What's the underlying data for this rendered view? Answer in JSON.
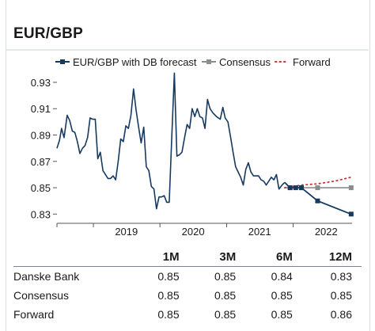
{
  "header": {
    "title": "EUR/GBP"
  },
  "chart_data": {
    "type": "line",
    "title": "EUR/GBP",
    "xlabel": "",
    "ylabel": "",
    "ylim": [
      0.823,
      0.942
    ],
    "yticks": [
      "0.93",
      "0.91",
      "0.89",
      "0.87",
      "0.85",
      "0.83"
    ],
    "ytick_values": [
      0.93,
      0.91,
      0.89,
      0.87,
      0.85,
      0.83
    ],
    "xticks": [
      "2019",
      "2020",
      "2021",
      "2022"
    ],
    "legend_position": "top",
    "grid": false,
    "series": [
      {
        "name": "EUR/GBP with DB forecast",
        "color": "#163a5f",
        "style": "solid-with-squares",
        "history": [
          [
            "2018-06-15",
            0.88
          ],
          [
            "2018-06-29",
            0.886
          ],
          [
            "2018-07-10",
            0.895
          ],
          [
            "2018-07-24",
            0.888
          ],
          [
            "2018-08-10",
            0.905
          ],
          [
            "2018-08-24",
            0.901
          ],
          [
            "2018-09-07",
            0.893
          ],
          [
            "2018-09-21",
            0.892
          ],
          [
            "2018-10-05",
            0.885
          ],
          [
            "2018-10-19",
            0.876
          ],
          [
            "2018-11-02",
            0.88
          ],
          [
            "2018-11-16",
            0.882
          ],
          [
            "2018-11-30",
            0.888
          ],
          [
            "2018-12-14",
            0.903
          ],
          [
            "2018-12-28",
            0.902
          ],
          [
            "2019-01-11",
            0.902
          ],
          [
            "2019-01-25",
            0.872
          ],
          [
            "2019-02-08",
            0.877
          ],
          [
            "2019-02-22",
            0.863
          ],
          [
            "2019-03-08",
            0.86
          ],
          [
            "2019-03-22",
            0.857
          ],
          [
            "2019-04-05",
            0.857
          ],
          [
            "2019-04-19",
            0.859
          ],
          [
            "2019-05-03",
            0.856
          ],
          [
            "2019-05-17",
            0.87
          ],
          [
            "2019-05-31",
            0.887
          ],
          [
            "2019-06-14",
            0.885
          ],
          [
            "2019-06-28",
            0.897
          ],
          [
            "2019-07-12",
            0.895
          ],
          [
            "2019-07-26",
            0.905
          ],
          [
            "2019-08-09",
            0.925
          ],
          [
            "2019-08-23",
            0.909
          ],
          [
            "2019-09-06",
            0.896
          ],
          [
            "2019-09-20",
            0.884
          ],
          [
            "2019-10-04",
            0.896
          ],
          [
            "2019-10-18",
            0.866
          ],
          [
            "2019-11-01",
            0.863
          ],
          [
            "2019-11-15",
            0.851
          ],
          [
            "2019-11-29",
            0.849
          ],
          [
            "2019-12-13",
            0.834
          ],
          [
            "2019-12-27",
            0.843
          ],
          [
            "2020-01-10",
            0.843
          ],
          [
            "2020-01-24",
            0.844
          ],
          [
            "2020-02-07",
            0.839
          ],
          [
            "2020-02-21",
            0.839
          ],
          [
            "2020-03-06",
            0.888
          ],
          [
            "2020-03-20",
            0.937
          ],
          [
            "2020-04-03",
            0.874
          ],
          [
            "2020-04-17",
            0.875
          ],
          [
            "2020-05-01",
            0.877
          ],
          [
            "2020-05-15",
            0.888
          ],
          [
            "2020-05-29",
            0.898
          ],
          [
            "2020-06-12",
            0.895
          ],
          [
            "2020-06-26",
            0.91
          ],
          [
            "2020-07-10",
            0.904
          ],
          [
            "2020-07-24",
            0.91
          ],
          [
            "2020-08-07",
            0.904
          ],
          [
            "2020-08-21",
            0.903
          ],
          [
            "2020-09-04",
            0.895
          ],
          [
            "2020-09-18",
            0.917
          ],
          [
            "2020-10-02",
            0.91
          ],
          [
            "2020-10-16",
            0.907
          ],
          [
            "2020-11-06",
            0.904
          ],
          [
            "2020-11-27",
            0.902
          ],
          [
            "2020-12-11",
            0.911
          ],
          [
            "2020-12-24",
            0.903
          ],
          [
            "2021-01-08",
            0.9
          ],
          [
            "2021-01-22",
            0.889
          ],
          [
            "2021-02-05",
            0.877
          ],
          [
            "2021-02-19",
            0.866
          ],
          [
            "2021-03-05",
            0.862
          ],
          [
            "2021-03-19",
            0.858
          ],
          [
            "2021-04-02",
            0.852
          ],
          [
            "2021-04-16",
            0.864
          ],
          [
            "2021-04-30",
            0.869
          ],
          [
            "2021-05-14",
            0.862
          ],
          [
            "2021-05-28",
            0.859
          ],
          [
            "2021-06-11",
            0.859
          ],
          [
            "2021-06-25",
            0.859
          ],
          [
            "2021-07-09",
            0.856
          ],
          [
            "2021-07-23",
            0.855
          ],
          [
            "2021-08-06",
            0.852
          ],
          [
            "2021-08-20",
            0.855
          ],
          [
            "2021-09-03",
            0.858
          ],
          [
            "2021-09-17",
            0.856
          ],
          [
            "2021-10-01",
            0.86
          ],
          [
            "2021-10-15",
            0.849
          ],
          [
            "2021-11-01",
            0.852
          ],
          [
            "2021-11-15",
            0.854
          ]
        ],
        "forecast": [
          [
            "2021-11-15",
            0.854
          ],
          [
            "2021-12-15",
            0.85
          ],
          [
            "2022-01-15",
            0.85
          ],
          [
            "2022-02-15",
            0.85
          ],
          [
            "2022-05-15",
            0.84
          ],
          [
            "2022-11-15",
            0.83
          ]
        ]
      },
      {
        "name": "Consensus",
        "color": "#8a8d90",
        "style": "solid-with-squares",
        "points": [
          [
            "2021-11-15",
            0.85
          ],
          [
            "2021-12-15",
            0.85
          ],
          [
            "2022-02-15",
            0.85
          ],
          [
            "2022-05-15",
            0.85
          ],
          [
            "2022-11-15",
            0.85
          ]
        ]
      },
      {
        "name": "Forward",
        "color": "#cc3333",
        "style": "dotted",
        "points": [
          [
            "2021-11-15",
            0.85
          ],
          [
            "2022-02-15",
            0.852
          ],
          [
            "2022-05-15",
            0.853
          ],
          [
            "2022-08-15",
            0.855
          ],
          [
            "2022-11-15",
            0.858
          ]
        ]
      }
    ]
  },
  "table": {
    "columns": [
      "",
      "1M",
      "3M",
      "6M",
      "12M"
    ],
    "rows": [
      [
        "Danske Bank",
        "0.85",
        "0.85",
        "0.84",
        "0.83"
      ],
      [
        "Consensus",
        "0.85",
        "0.85",
        "0.85",
        "0.85"
      ],
      [
        "Forward",
        "0.85",
        "0.85",
        "0.85",
        "0.86"
      ]
    ]
  }
}
